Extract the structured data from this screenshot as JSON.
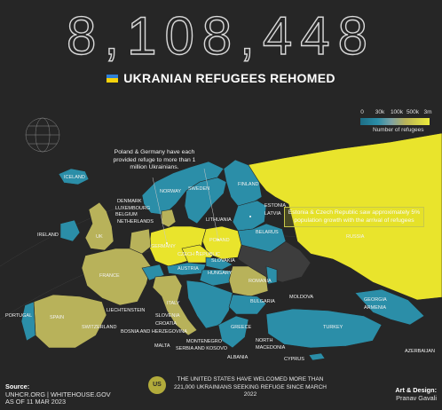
{
  "header": {
    "big_number": "8,108,448",
    "title": "UKRANIAN REFUGEES REHOMED"
  },
  "legend": {
    "ticks": [
      "0",
      "30k",
      "100k",
      "500k",
      "3m"
    ],
    "label": "Number of refugees",
    "colors": [
      "#1d6e86",
      "#2b8ea8",
      "#7fa2a3",
      "#b8b25a",
      "#ecec3a"
    ]
  },
  "callouts": {
    "poland_germany": "Poland & Germany have each provided refuge to more than 1 million Ukrainians.",
    "estonia_czech": "Estonia & Czech Republic saw approximately 5% population growth with the arrival of refugees",
    "us": "THE UNITED STATES HAVE WELCOMED MORE THAN 221,000 UKRAINIANS SEEKING REFUGE SINCE MARCH 2022",
    "us_badge": "US"
  },
  "countries": {
    "iceland": "ICELAND",
    "norway": "NORWAY",
    "sweden": "SWEDEN",
    "finland": "FINLAND",
    "estonia": "ESTONIA",
    "latvia": "LATVIA",
    "lithuania": "LITHUANIA",
    "denmark": "DENMARK",
    "luxembourg": "LUXEMBOURG",
    "belgium": "BELGIUM",
    "netherlands": "NETHERLANDS",
    "ireland": "IRELAND",
    "uk": "UK",
    "germany": "GERMANY",
    "poland": "POLAND",
    "belarus": "BELARUS",
    "russia": "RUSSIA",
    "czech": "CZECH REPUBLIC",
    "slovakia": "SLOVAKIA",
    "austria": "AUSTRIA",
    "hungary": "HUNGARY",
    "romania": "ROMANIA",
    "moldova": "MOLDOVA",
    "france": "FRANCE",
    "portugal": "PORTUGAL",
    "spain": "SPAIN",
    "switzerland": "SWITZERLAND",
    "liechtenstein": "LIECHTENSTEIN",
    "italy": "ITALY",
    "slovenia": "SLOVENIA",
    "croatia": "CROATIA",
    "bosnia": "BOSNIA AND HERZEGOVINA",
    "malta": "MALTA",
    "montenegro": "MONTENEGRO",
    "serbia_kosovo": "SERBIA AND KOSOVO",
    "albania": "ALBANIA",
    "greece": "GREECE",
    "north_macedonia": "NORTH MACEDONIA",
    "bulgaria": "BULGARIA",
    "georgia": "GEORGIA",
    "armenia": "ARMENIA",
    "turkey": "TURKEY",
    "azerbaijan": "AZERBAIJAN",
    "cyprus": "CYPRUS"
  },
  "footer": {
    "source_title": "Source:",
    "source_line1": "UNHCR.ORG | WHITEHOUSE.GOV",
    "source_line2": "AS OF 11 MAR 2023",
    "credit_title": "Art & Design:",
    "credit_name": "Pranav Gavali"
  }
}
